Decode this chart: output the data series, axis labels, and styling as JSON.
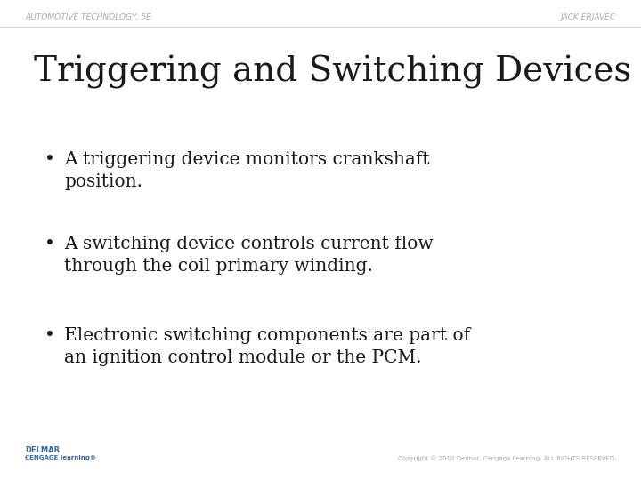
{
  "background_color": "#ffffff",
  "header_left": "AUTOMOTIVE TECHNOLOGY, 5E",
  "header_right": "JACK ERJAVEC",
  "header_color": "#aaaaaa",
  "header_fontsize": 6.5,
  "title": "Triggering and Switching Devices",
  "title_fontsize": 28,
  "title_color": "#1a1a1a",
  "title_font": "serif",
  "bullet_points": [
    "A triggering device monitors crankshaft\nposition.",
    "A switching device controls current flow\nthrough the coil primary winding.",
    "Electronic switching components are part of\nan ignition control module or the PCM."
  ],
  "bullet_fontsize": 14.5,
  "bullet_color": "#1a1a1a",
  "bullet_font": "serif",
  "footer_left_line1": "DELMAR",
  "footer_left_line2": "CENGAGE learning®",
  "footer_right": "Copyright © 2010 Delmar, Cengage Learning. ALL RIGHTS RESERVED.",
  "footer_color": "#aaaaaa",
  "footer_fontsize": 5.0,
  "divider_color": "#cccccc"
}
